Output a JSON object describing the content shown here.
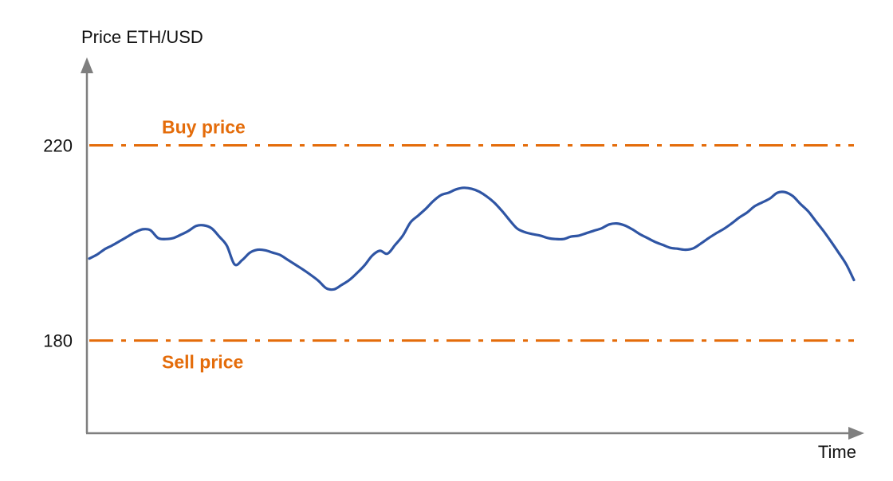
{
  "colors": {
    "axis": "#7f7f7f",
    "price_line": "#2f55a4",
    "reference": "#e46c0a"
  },
  "chart_data": {
    "type": "line",
    "ylabel": "Price ETH/USD",
    "xlabel": "Time",
    "ylim": [
      161,
      240
    ],
    "yticks": [
      {
        "value": 220,
        "label": "220"
      },
      {
        "value": 180,
        "label": "180"
      }
    ],
    "xlim": [
      0,
      100
    ],
    "reference_lines": [
      {
        "name": "Buy price",
        "value": 220,
        "style": "dash-dot",
        "label_position": "above"
      },
      {
        "name": "Sell price",
        "value": 180,
        "style": "dash-dot",
        "label_position": "below"
      }
    ],
    "series": [
      {
        "x": [
          0,
          1,
          2,
          3,
          4,
          5,
          6,
          7,
          8,
          9,
          10,
          11,
          12,
          13,
          14,
          15,
          16,
          17,
          18,
          19,
          20,
          21,
          22,
          23,
          24,
          25,
          26,
          27,
          28,
          29,
          30,
          31,
          32,
          33,
          34,
          35,
          36,
          37,
          38,
          39,
          40,
          41,
          42,
          43,
          44,
          45,
          46,
          47,
          48,
          49,
          50,
          51,
          52,
          53,
          54,
          55,
          56,
          57,
          58,
          59,
          60,
          61,
          62,
          63,
          64,
          65,
          66,
          67,
          68,
          69,
          70,
          71,
          72,
          73,
          74,
          75,
          76,
          77,
          78,
          79,
          80,
          81,
          82,
          83,
          84,
          85,
          86,
          87,
          88,
          89,
          90,
          91,
          92,
          93,
          94,
          95,
          96,
          97,
          98,
          99,
          100
        ],
        "y": [
          196.8,
          197.6,
          198.7,
          199.5,
          200.4,
          201.3,
          202.2,
          202.8,
          202.6,
          201.0,
          200.8,
          201.0,
          201.7,
          202.5,
          203.5,
          203.6,
          203.0,
          201.3,
          199.4,
          195.6,
          196.5,
          198.0,
          198.6,
          198.5,
          198.0,
          197.5,
          196.5,
          195.5,
          194.5,
          193.4,
          192.2,
          190.7,
          190.5,
          191.4,
          192.4,
          193.8,
          195.4,
          197.4,
          198.4,
          197.8,
          199.6,
          201.5,
          204.2,
          205.6,
          207.0,
          208.6,
          209.8,
          210.3,
          211.0,
          211.3,
          211.1,
          210.5,
          209.5,
          208.2,
          206.5,
          204.6,
          202.9,
          202.2,
          201.8,
          201.5,
          201.0,
          200.8,
          200.8,
          201.3,
          201.5,
          202.0,
          202.5,
          203.0,
          203.8,
          204.0,
          203.6,
          202.8,
          201.8,
          201.0,
          200.2,
          199.6,
          199.0,
          198.8,
          198.6,
          198.9,
          199.9,
          201.0,
          202.0,
          202.9,
          204.0,
          205.2,
          206.2,
          207.5,
          208.3,
          209.1,
          210.3,
          210.4,
          209.6,
          208.0,
          206.5,
          204.5,
          202.5,
          200.3,
          198.0,
          195.6,
          192.4
        ]
      }
    ]
  }
}
